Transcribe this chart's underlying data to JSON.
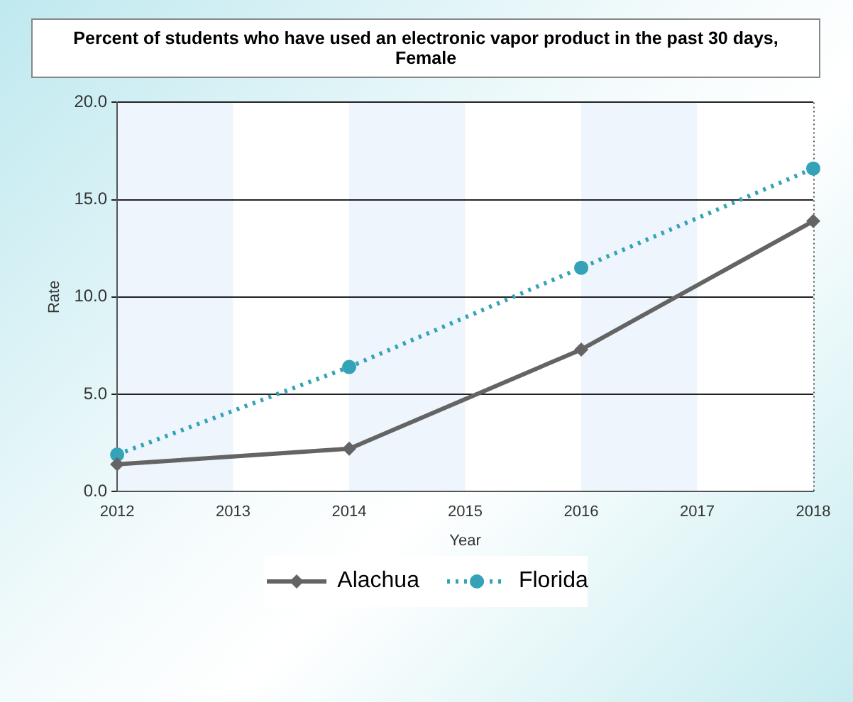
{
  "chart_data": {
    "type": "line",
    "title": "Percent of students who have used an electronic vapor product in the past 30 days, Female",
    "xlabel": "Year",
    "ylabel": "Rate",
    "x": [
      2012,
      2014,
      2016,
      2018
    ],
    "series": [
      {
        "name": "Alachua",
        "color": "#646464",
        "values": [
          1.4,
          2.2,
          7.3,
          13.9
        ],
        "marker": "diamond",
        "line_style": "solid"
      },
      {
        "name": "Florida",
        "color": "#34a3b8",
        "values": [
          1.9,
          6.4,
          11.5,
          16.6
        ],
        "marker": "circle",
        "line_style": "dotted"
      }
    ],
    "xlim": [
      2012,
      2018
    ],
    "xticks": [
      2012,
      2013,
      2014,
      2015,
      2016,
      2017,
      2018
    ],
    "ylim": [
      0,
      20
    ],
    "yticks": [
      {
        "value": 0,
        "label": "0.0"
      },
      {
        "value": 5,
        "label": "5.0"
      },
      {
        "value": 10,
        "label": "10.0"
      },
      {
        "value": 15,
        "label": "15.0"
      },
      {
        "value": 20,
        "label": "20.0"
      }
    ],
    "bands": [
      {
        "axis": "x",
        "from": 2012,
        "to": 2013,
        "color": "#eef5fc"
      },
      {
        "axis": "x",
        "from": 2014,
        "to": 2015,
        "color": "#eef5fc"
      },
      {
        "axis": "x",
        "from": 2016,
        "to": 2017,
        "color": "#eef5fc"
      }
    ],
    "grid": "y",
    "legend": "bottom"
  }
}
